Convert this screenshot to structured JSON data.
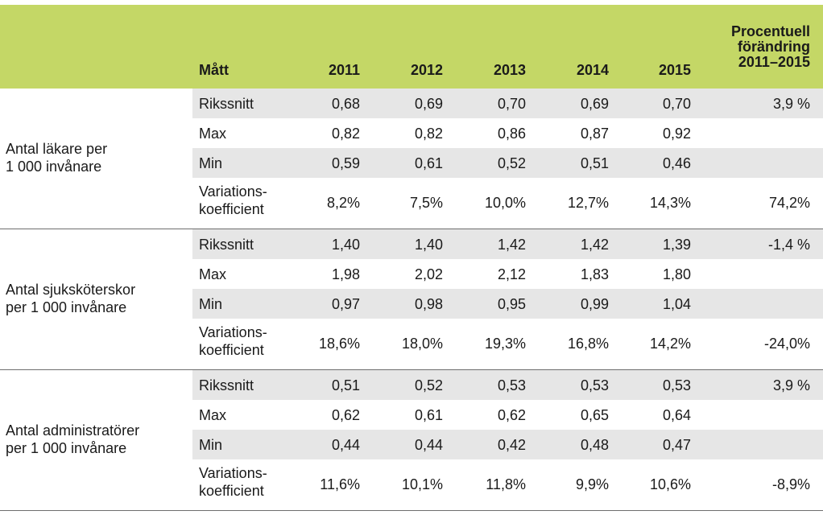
{
  "table": {
    "headers": {
      "measure": "Mått",
      "years": [
        "2011",
        "2012",
        "2013",
        "2014",
        "2015"
      ],
      "change": [
        "Procentuell",
        "förändring",
        "2011–2015"
      ]
    },
    "groups": [
      {
        "label": [
          "Antal läkare per",
          "1 000 invånare"
        ],
        "rows": [
          {
            "measure": [
              "Rikssnitt"
            ],
            "values": [
              "0,68",
              "0,69",
              "0,70",
              "0,69",
              "0,70"
            ],
            "change": "3,9 %"
          },
          {
            "measure": [
              "Max"
            ],
            "values": [
              "0,82",
              "0,82",
              "0,86",
              "0,87",
              "0,92"
            ],
            "change": ""
          },
          {
            "measure": [
              "Min"
            ],
            "values": [
              "0,59",
              "0,61",
              "0,52",
              "0,51",
              "0,46"
            ],
            "change": ""
          },
          {
            "measure": [
              "Variations-",
              "koefficient"
            ],
            "values": [
              "8,2%",
              "7,5%",
              "10,0%",
              "12,7%",
              "14,3%"
            ],
            "change": "74,2%"
          }
        ]
      },
      {
        "label": [
          "Antal sjuksköterskor",
          "per 1 000 invånare"
        ],
        "rows": [
          {
            "measure": [
              "Rikssnitt"
            ],
            "values": [
              "1,40",
              "1,40",
              "1,42",
              "1,42",
              "1,39"
            ],
            "change": "-1,4 %"
          },
          {
            "measure": [
              "Max"
            ],
            "values": [
              "1,98",
              "2,02",
              "2,12",
              "1,83",
              "1,80"
            ],
            "change": ""
          },
          {
            "measure": [
              "Min"
            ],
            "values": [
              "0,97",
              "0,98",
              "0,95",
              "0,99",
              "1,04"
            ],
            "change": ""
          },
          {
            "measure": [
              "Variations-",
              "koefficient"
            ],
            "values": [
              "18,6%",
              "18,0%",
              "19,3%",
              "16,8%",
              "14,2%"
            ],
            "change": "-24,0%"
          }
        ]
      },
      {
        "label": [
          "Antal administratörer",
          "per 1 000 invånare"
        ],
        "rows": [
          {
            "measure": [
              "Rikssnitt"
            ],
            "values": [
              "0,51",
              "0,52",
              "0,53",
              "0,53",
              "0,53"
            ],
            "change": "3,9 %"
          },
          {
            "measure": [
              "Max"
            ],
            "values": [
              "0,62",
              "0,61",
              "0,62",
              "0,65",
              "0,64"
            ],
            "change": ""
          },
          {
            "measure": [
              "Min"
            ],
            "values": [
              "0,44",
              "0,44",
              "0,42",
              "0,48",
              "0,47"
            ],
            "change": ""
          },
          {
            "measure": [
              "Variations-",
              "koefficient"
            ],
            "values": [
              "11,6%",
              "10,1%",
              "11,8%",
              "9,9%",
              "10,6%"
            ],
            "change": "-8,9%"
          }
        ]
      }
    ]
  }
}
